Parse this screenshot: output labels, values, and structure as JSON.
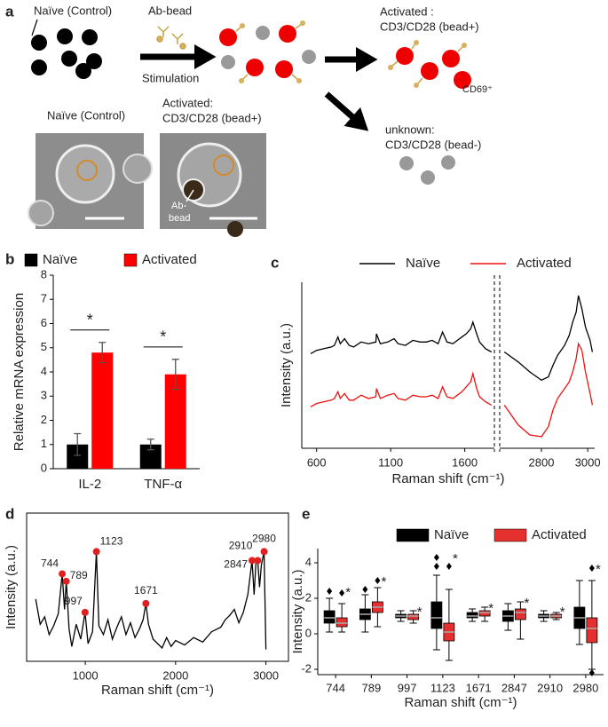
{
  "panel_a": {
    "label": "a",
    "naive_title": "Naïve (Control)",
    "bead_label": "Ab-bead",
    "stimulation": "Stimulation",
    "activated_title": [
      "Activated :",
      "CD3/CD28 (bead+)"
    ],
    "marker": "CD69⁺",
    "unknown_title": [
      "unknown:",
      "CD3/CD28 (bead-)"
    ],
    "micrographs": [
      {
        "title": [
          "Naïve (Control)"
        ]
      },
      {
        "title": [
          "Activated:",
          "CD3/CD28 (bead+)"
        ],
        "inset": [
          "Ab-",
          "bead"
        ]
      }
    ]
  },
  "chart_data": [
    {
      "panel": "b",
      "type": "bar",
      "ylabel": "Relative mRNA expression",
      "categories": [
        "IL-2",
        "TNF-α"
      ],
      "series": [
        {
          "name": "Naïve",
          "color": "#000000",
          "values": [
            1.0,
            1.0
          ],
          "errors": [
            0.45,
            0.22
          ]
        },
        {
          "name": "Activated",
          "color": "#ff0000",
          "values": [
            4.8,
            3.9
          ],
          "errors": [
            0.42,
            0.62
          ]
        }
      ],
      "ylim": [
        0,
        8
      ],
      "yticks": [
        0,
        1,
        2,
        3,
        4,
        5,
        6,
        7,
        8
      ],
      "annotations": [
        "*",
        "*"
      ],
      "legend": "top"
    },
    {
      "panel": "c",
      "type": "line",
      "xlabel": "Raman shift (cm⁻¹)",
      "ylabel": "Intensity (a.u.)",
      "x": [
        560,
        600,
        650,
        700,
        720,
        744,
        760,
        789,
        820,
        850,
        900,
        950,
        1000,
        1004,
        1030,
        1080,
        1123,
        1150,
        1200,
        1250,
        1300,
        1340,
        1380,
        1420,
        1450,
        1480,
        1520,
        1550,
        1580,
        1610,
        1640,
        1655,
        1680,
        1700,
        1740,
        1780,
        null,
        2640,
        2700,
        2750,
        2800,
        2830,
        2850,
        2870,
        2900,
        2920,
        2935,
        2950,
        2960,
        2975,
        2990,
        3010,
        3020
      ],
      "series": [
        {
          "name": "Naïve",
          "color": "#000000",
          "values": [
            5.7,
            5.9,
            6.0,
            6.1,
            6.2,
            6.7,
            6.3,
            6.6,
            6.2,
            6.1,
            6.4,
            6.3,
            6.4,
            6.9,
            6.3,
            6.4,
            6.6,
            6.3,
            6.2,
            6.5,
            6.4,
            6.4,
            6.5,
            6.3,
            7.0,
            6.4,
            6.3,
            6.5,
            6.7,
            6.9,
            7.2,
            7.6,
            6.9,
            6.4,
            6.0,
            5.8,
            null,
            5.8,
            5.2,
            4.6,
            4.1,
            4.3,
            5.0,
            5.6,
            6.2,
            6.8,
            7.6,
            8.2,
            9.2,
            8.4,
            7.3,
            6.5,
            5.8
          ]
        },
        {
          "name": "Activated",
          "color": "#ee1111",
          "values": [
            2.5,
            2.7,
            2.8,
            2.9,
            3.0,
            3.4,
            3.0,
            3.3,
            2.9,
            2.9,
            3.2,
            3.0,
            3.1,
            3.6,
            3.0,
            3.2,
            3.3,
            3.0,
            2.9,
            3.2,
            3.1,
            3.1,
            3.2,
            3.0,
            3.7,
            3.1,
            3.0,
            3.2,
            3.4,
            3.7,
            4.0,
            4.5,
            3.6,
            3.1,
            2.8,
            2.6,
            null,
            2.6,
            1.4,
            0.8,
            0.7,
            1.3,
            2.3,
            3.0,
            3.6,
            4.0,
            4.6,
            5.4,
            6.3,
            5.9,
            4.6,
            3.3,
            2.6
          ]
        }
      ],
      "xlim": [
        [
          500,
          1800
        ],
        [
          2620,
          3030
        ]
      ],
      "ylim": [
        0,
        10
      ],
      "xticks": [
        600,
        1100,
        1600,
        2800,
        3000
      ],
      "legend": "top"
    },
    {
      "panel": "d",
      "type": "line",
      "xlabel": "Raman shift (cm⁻¹)",
      "ylabel": "Intensity (a.u.)",
      "color": "#000000",
      "x": [
        450,
        500,
        550,
        600,
        650,
        700,
        744,
        770,
        789,
        820,
        850,
        900,
        950,
        997,
        1030,
        1080,
        1123,
        1150,
        1200,
        1250,
        1300,
        1350,
        1400,
        1450,
        1500,
        1550,
        1600,
        1640,
        1671,
        1700,
        1750,
        1800,
        1850,
        1900,
        1950,
        2000,
        2100,
        2200,
        2300,
        2400,
        2500,
        2550,
        2600,
        2650,
        2700,
        2750,
        2800,
        2830,
        2847,
        2870,
        2890,
        2910,
        2930,
        2950,
        2980,
        3000
      ],
      "values": [
        4.2,
        2.5,
        3.0,
        1.8,
        2.4,
        3.2,
        5.9,
        3.5,
        5.4,
        2.2,
        1.0,
        2.5,
        1.5,
        3.3,
        1.2,
        2.0,
        7.4,
        2.4,
        1.8,
        2.8,
        1.5,
        2.3,
        3.0,
        1.8,
        2.6,
        1.6,
        2.2,
        2.8,
        3.9,
        2.5,
        1.5,
        1.2,
        0.9,
        1.6,
        1.0,
        1.4,
        1.1,
        1.6,
        1.3,
        2.0,
        2.3,
        2.8,
        3.1,
        3.5,
        2.6,
        3.3,
        4.5,
        6.0,
        6.8,
        4.5,
        6.7,
        6.8,
        5.0,
        6.5,
        7.4,
        0.8
      ],
      "peaks": {
        "color": "#e02020",
        "x": [
          744,
          789,
          997,
          1123,
          1671,
          2847,
          2910,
          2980
        ],
        "values": [
          5.9,
          5.4,
          3.3,
          7.4,
          3.9,
          6.8,
          6.8,
          7.4
        ]
      },
      "xlim": [
        350,
        3250
      ],
      "ylim": [
        0,
        10
      ],
      "xticks": [
        1000,
        2000,
        3000
      ],
      "frame": true
    },
    {
      "panel": "e",
      "type": "box",
      "xlabel": "Raman shift (cm⁻¹)",
      "ylabel": "Intensity (a.u.)",
      "categories": [
        "744",
        "789",
        "997",
        "1123",
        "1671",
        "2847",
        "2910",
        "2980"
      ],
      "series": [
        {
          "name": "Naïve",
          "color": "#000000",
          "boxes": [
            {
              "min": 0.1,
              "q1": 0.6,
              "median": 0.9,
              "q3": 1.3,
              "max": 2.0,
              "outliers": [
                2.4
              ]
            },
            {
              "min": 0.1,
              "q1": 0.8,
              "median": 1.1,
              "q3": 1.4,
              "max": 2.2,
              "outliers": [
                2.5
              ]
            },
            {
              "min": 0.7,
              "q1": 0.9,
              "median": 1.0,
              "q3": 1.1,
              "max": 1.3,
              "outliers": []
            },
            {
              "min": -0.9,
              "q1": 0.3,
              "median": 0.9,
              "q3": 1.8,
              "max": 3.3,
              "outliers": [
                4.3,
                3.8
              ]
            },
            {
              "min": 0.7,
              "q1": 0.9,
              "median": 1.0,
              "q3": 1.2,
              "max": 1.4,
              "outliers": []
            },
            {
              "min": 0.2,
              "q1": 0.7,
              "median": 1.0,
              "q3": 1.3,
              "max": 1.7,
              "outliers": []
            },
            {
              "min": 0.7,
              "q1": 0.9,
              "median": 1.0,
              "q3": 1.1,
              "max": 1.3,
              "outliers": []
            },
            {
              "min": -0.6,
              "q1": 0.3,
              "median": 0.9,
              "q3": 1.5,
              "max": 3.0,
              "outliers": []
            }
          ]
        },
        {
          "name": "Activated",
          "color": "#e53030",
          "boxes": [
            {
              "min": 0.1,
              "q1": 0.4,
              "median": 0.6,
              "q3": 0.9,
              "max": 1.7,
              "outliers": [
                2.3
              ]
            },
            {
              "min": 0.4,
              "q1": 1.2,
              "median": 1.5,
              "q3": 1.8,
              "max": 2.6,
              "outliers": [
                3.0
              ]
            },
            {
              "min": 0.6,
              "q1": 0.8,
              "median": 1.0,
              "q3": 1.1,
              "max": 1.3,
              "outliers": []
            },
            {
              "min": -1.5,
              "q1": -0.4,
              "median": 0.1,
              "q3": 0.6,
              "max": 2.5,
              "outliers": [
                3.8
              ]
            },
            {
              "min": 0.7,
              "q1": 1.0,
              "median": 1.2,
              "q3": 1.3,
              "max": 1.5,
              "outliers": []
            },
            {
              "min": -0.3,
              "q1": 0.8,
              "median": 1.2,
              "q3": 1.4,
              "max": 1.8,
              "outliers": []
            },
            {
              "min": 0.8,
              "q1": 0.9,
              "median": 1.0,
              "q3": 1.1,
              "max": 1.2,
              "outliers": []
            },
            {
              "min": -2.0,
              "q1": -0.5,
              "median": 0.3,
              "q3": 0.9,
              "max": 3.0,
              "outliers": [
                3.7,
                -2.2
              ]
            }
          ]
        }
      ],
      "ylim": [
        -2.3,
        4.8
      ],
      "yticks": [
        -2,
        0,
        2,
        4
      ],
      "annotations": [
        "*",
        "*",
        "*",
        "*",
        "*",
        "*",
        "*",
        "*"
      ],
      "legend": "top"
    }
  ]
}
